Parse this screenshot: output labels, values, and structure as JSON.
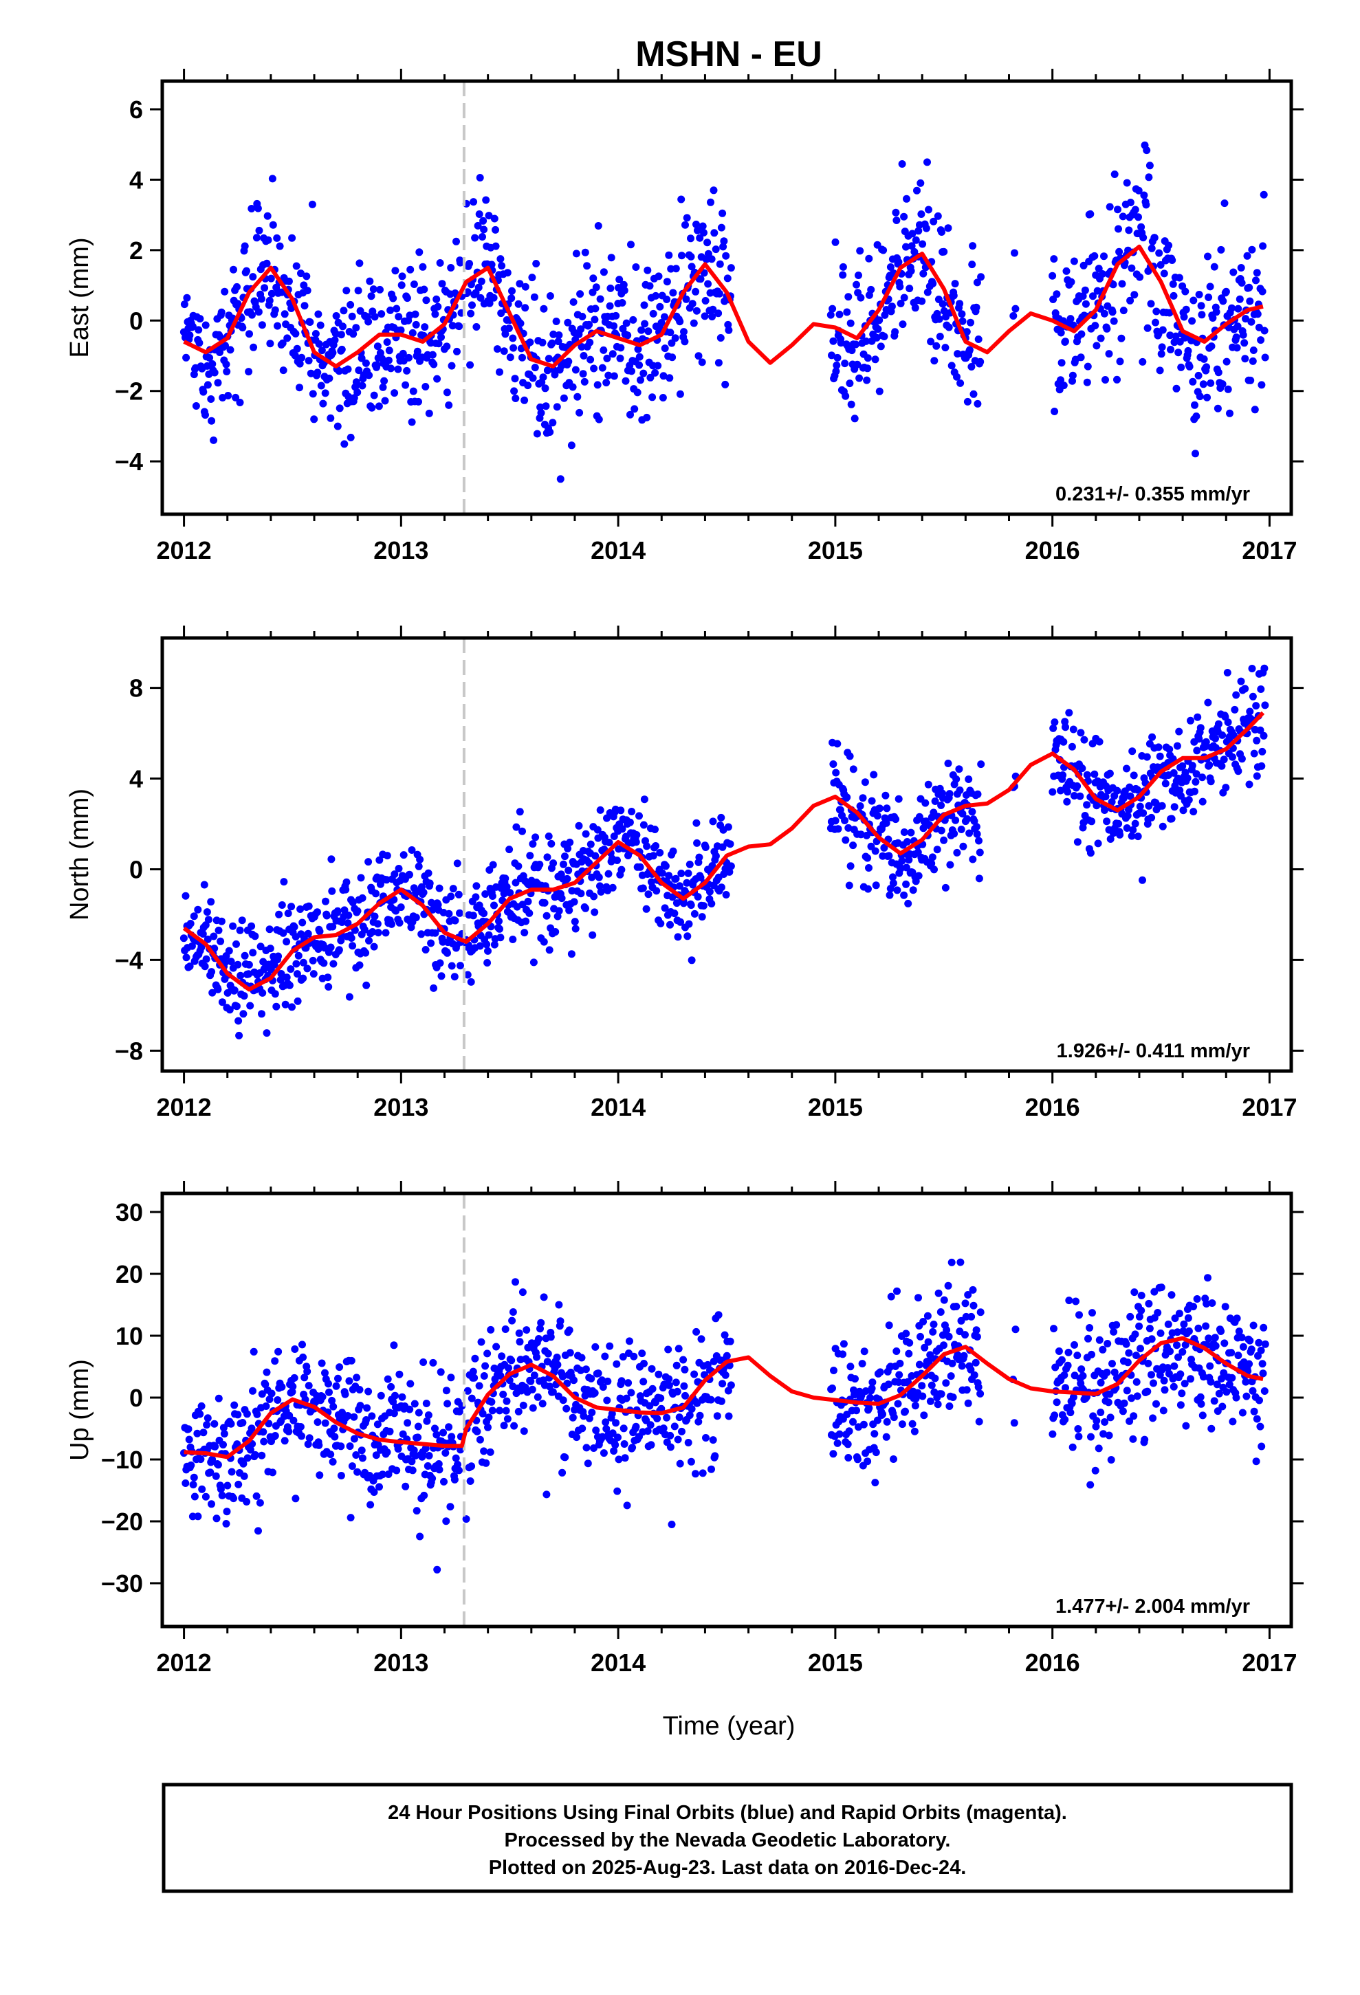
{
  "title": "MSHN - EU",
  "colors": {
    "points": "#0000ff",
    "fit": "#ff0000",
    "break": "#c8c8c8",
    "frame": "#000000"
  },
  "xlabel": "Time (year)",
  "footer": [
    "24 Hour Positions Using Final Orbits (blue) and Rapid Orbits (magenta).",
    "Processed by the Nevada Geodetic Laboratory.",
    "Plotted on 2025-Aug-23. Last data on 2016-Dec-24."
  ],
  "chart_data": [
    {
      "type": "scatter",
      "ylabel": "East (mm)",
      "rate": "0.231+/- 0.355 mm/yr",
      "xlim": [
        2011.9,
        2017.1
      ],
      "ylim": [
        -5.5,
        6.8
      ],
      "xticks": [
        2012,
        2013,
        2014,
        2015,
        2016,
        2017
      ],
      "yticks": [
        -4,
        -2,
        0,
        2,
        4,
        6
      ],
      "ytick_labels": [
        "−4",
        "−2",
        "0",
        "2",
        "4",
        "6"
      ],
      "break_year": 2013.29,
      "series": [
        {
          "role": "fit",
          "x": [
            2012.0,
            2012.1,
            2012.2,
            2012.3,
            2012.4,
            2012.5,
            2012.6,
            2012.7,
            2012.8,
            2012.9,
            2013.0,
            2013.1,
            2013.2,
            2013.3,
            2013.4,
            2013.5,
            2013.6,
            2013.7,
            2013.8,
            2013.9,
            2014.0,
            2014.1,
            2014.2,
            2014.3,
            2014.4,
            2014.5,
            2014.6,
            2014.7,
            2014.8,
            2014.9,
            2015.0,
            2015.1,
            2015.2,
            2015.3,
            2015.4,
            2015.5,
            2015.6,
            2015.7,
            2015.8,
            2015.9,
            2016.0,
            2016.1,
            2016.2,
            2016.3,
            2016.4,
            2016.5,
            2016.6,
            2016.7,
            2016.8,
            2016.9,
            2016.97
          ],
          "y": [
            -0.6,
            -0.9,
            -0.5,
            0.8,
            1.5,
            0.6,
            -0.9,
            -1.3,
            -0.9,
            -0.4,
            -0.4,
            -0.6,
            -0.1,
            1.1,
            1.5,
            0.2,
            -1.1,
            -1.3,
            -0.7,
            -0.3,
            -0.5,
            -0.7,
            -0.4,
            0.8,
            1.6,
            0.8,
            -0.6,
            -1.2,
            -0.7,
            -0.1,
            -0.2,
            -0.5,
            0.3,
            1.5,
            1.9,
            0.9,
            -0.6,
            -0.9,
            -0.3,
            0.2,
            0.0,
            -0.3,
            0.3,
            1.6,
            2.1,
            1.1,
            -0.3,
            -0.6,
            -0.1,
            0.3,
            0.4
          ]
        },
        {
          "role": "points",
          "spans": [
            [
              2012.0,
              2013.28
            ],
            [
              2013.3,
              2014.52
            ],
            [
              2014.98,
              2015.67
            ],
            [
              2015.82,
              2015.83
            ],
            [
              2016.0,
              2016.98
            ]
          ],
          "noise": 1.15,
          "seed": 1
        }
      ]
    },
    {
      "type": "scatter",
      "ylabel": "North (mm)",
      "rate": "1.926+/- 0.411 mm/yr",
      "xlim": [
        2011.9,
        2017.1
      ],
      "ylim": [
        -8.9,
        10.2
      ],
      "xticks": [
        2012,
        2013,
        2014,
        2015,
        2016,
        2017
      ],
      "yticks": [
        -8,
        -4,
        0,
        4,
        8
      ],
      "ytick_labels": [
        "−8",
        "−4",
        "0",
        "4",
        "8"
      ],
      "break_year": 2013.29,
      "series": [
        {
          "role": "fit",
          "x": [
            2012.0,
            2012.1,
            2012.2,
            2012.3,
            2012.4,
            2012.5,
            2012.6,
            2012.7,
            2012.8,
            2012.9,
            2013.0,
            2013.1,
            2013.2,
            2013.3,
            2013.4,
            2013.5,
            2013.6,
            2013.7,
            2013.8,
            2013.9,
            2014.0,
            2014.1,
            2014.2,
            2014.3,
            2014.4,
            2014.5,
            2014.6,
            2014.7,
            2014.8,
            2014.9,
            2015.0,
            2015.1,
            2015.2,
            2015.3,
            2015.4,
            2015.5,
            2015.6,
            2015.7,
            2015.8,
            2015.9,
            2016.0,
            2016.1,
            2016.2,
            2016.3,
            2016.4,
            2016.5,
            2016.6,
            2016.7,
            2016.8,
            2016.9,
            2016.97
          ],
          "y": [
            -2.6,
            -3.3,
            -4.6,
            -5.3,
            -4.8,
            -3.6,
            -3.0,
            -2.9,
            -2.4,
            -1.5,
            -0.9,
            -1.6,
            -2.8,
            -3.2,
            -2.4,
            -1.3,
            -0.9,
            -0.9,
            -0.6,
            0.3,
            1.2,
            0.6,
            -0.6,
            -1.3,
            -0.6,
            0.6,
            1.0,
            1.1,
            1.8,
            2.8,
            3.2,
            2.5,
            1.4,
            0.7,
            1.3,
            2.4,
            2.8,
            2.9,
            3.5,
            4.6,
            5.1,
            4.4,
            3.1,
            2.6,
            3.2,
            4.3,
            4.9,
            4.9,
            5.3,
            6.2,
            6.9
          ]
        },
        {
          "role": "points",
          "spans": [
            [
              2012.0,
              2013.28
            ],
            [
              2013.3,
              2014.52
            ],
            [
              2014.98,
              2015.67
            ],
            [
              2015.82,
              2015.83
            ],
            [
              2016.0,
              2016.98
            ]
          ],
          "noise": 1.15,
          "seed": 2
        }
      ]
    },
    {
      "type": "scatter",
      "ylabel": "Up (mm)",
      "rate": "1.477+/- 2.004 mm/yr",
      "xlim": [
        2011.9,
        2017.1
      ],
      "ylim": [
        -37,
        33
      ],
      "xticks": [
        2012,
        2013,
        2014,
        2015,
        2016,
        2017
      ],
      "yticks": [
        -30,
        -20,
        -10,
        0,
        10,
        20,
        30
      ],
      "ytick_labels": [
        "−30",
        "−20",
        "−10",
        "0",
        "10",
        "20",
        "30"
      ],
      "break_year": 2013.29,
      "series": [
        {
          "role": "fit",
          "x": [
            2012.0,
            2012.1,
            2012.2,
            2012.3,
            2012.4,
            2012.5,
            2012.6,
            2012.7,
            2012.8,
            2012.9,
            2013.0,
            2013.1,
            2013.2,
            2013.28,
            2013.3,
            2013.4,
            2013.5,
            2013.6,
            2013.7,
            2013.8,
            2013.9,
            2014.0,
            2014.1,
            2014.2,
            2014.3,
            2014.4,
            2014.5,
            2014.6,
            2014.7,
            2014.8,
            2014.9,
            2015.0,
            2015.1,
            2015.2,
            2015.3,
            2015.4,
            2015.5,
            2015.6,
            2015.7,
            2015.8,
            2015.9,
            2016.0,
            2016.1,
            2016.2,
            2016.3,
            2016.4,
            2016.5,
            2016.6,
            2016.7,
            2016.8,
            2016.9,
            2016.97
          ],
          "y": [
            -8.8,
            -9.0,
            -9.6,
            -7.0,
            -2.5,
            -0.3,
            -1.5,
            -4.0,
            -5.8,
            -6.8,
            -7.2,
            -7.5,
            -7.8,
            -7.8,
            -5.0,
            0.5,
            3.8,
            5.3,
            3.5,
            0.0,
            -1.6,
            -2.0,
            -2.4,
            -2.5,
            -1.6,
            2.8,
            5.8,
            6.5,
            3.5,
            1.0,
            0.0,
            -0.4,
            -0.8,
            -1.0,
            0.4,
            3.5,
            7.0,
            8.2,
            5.5,
            3.0,
            1.5,
            1.0,
            0.8,
            0.6,
            2.2,
            6.0,
            8.8,
            9.6,
            8.0,
            5.5,
            3.5,
            3.0
          ]
        },
        {
          "role": "points",
          "spans": [
            [
              2012.0,
              2013.28
            ],
            [
              2013.3,
              2014.52
            ],
            [
              2014.98,
              2015.67
            ],
            [
              2015.82,
              2015.83
            ],
            [
              2016.0,
              2016.98
            ]
          ],
          "noise": 5.6,
          "seed": 3
        }
      ]
    }
  ]
}
